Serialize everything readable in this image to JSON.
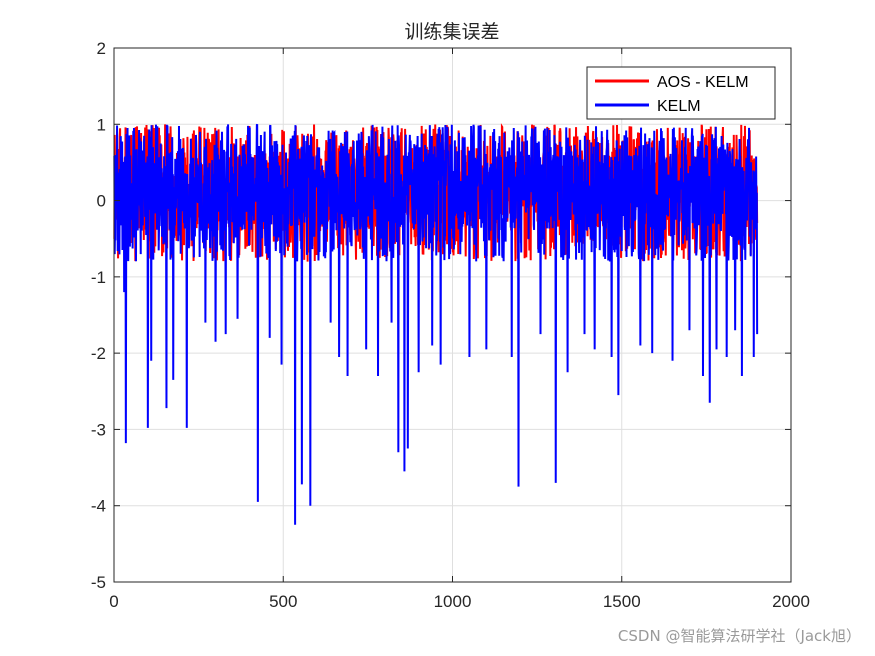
{
  "chart_data": {
    "type": "line",
    "title": "训练集误差",
    "xlabel": "",
    "ylabel": "",
    "xlim": [
      0,
      2000
    ],
    "ylim": [
      -5,
      2
    ],
    "x_ticks": [
      0,
      500,
      1000,
      1500,
      2000
    ],
    "y_ticks": [
      -5,
      -4,
      -3,
      -2,
      -1,
      0,
      1,
      2
    ],
    "grid": true,
    "legend_position": "top-right",
    "n_points": 1900,
    "series": [
      {
        "name": "AOS - KELM",
        "color": "#ff0000",
        "note_values": "dense noise between about -0.8 and 1.0 for x in 1..1900, almost entirely hidden under KELM",
        "peaks": [
          [
            270,
            0.38
          ]
        ]
      },
      {
        "name": "KELM",
        "color": "#0000ff",
        "dense_range": [
          -0.8,
          1.0
        ],
        "spikes": [
          [
            30,
            -1.2
          ],
          [
            35,
            -3.18
          ],
          [
            100,
            -2.98
          ],
          [
            110,
            -2.1
          ],
          [
            155,
            -2.72
          ],
          [
            175,
            -2.35
          ],
          [
            215,
            -2.98
          ],
          [
            270,
            -1.6
          ],
          [
            300,
            -1.85
          ],
          [
            330,
            -1.75
          ],
          [
            365,
            -1.55
          ],
          [
            425,
            -3.95
          ],
          [
            460,
            -1.8
          ],
          [
            495,
            -2.15
          ],
          [
            535,
            -4.25
          ],
          [
            555,
            -3.72
          ],
          [
            580,
            -4.0
          ],
          [
            640,
            -1.6
          ],
          [
            665,
            -2.05
          ],
          [
            690,
            -2.3
          ],
          [
            745,
            -1.95
          ],
          [
            780,
            -2.3
          ],
          [
            820,
            -1.6
          ],
          [
            840,
            -3.3
          ],
          [
            858,
            -3.55
          ],
          [
            868,
            -3.25
          ],
          [
            900,
            -2.25
          ],
          [
            940,
            -1.9
          ],
          [
            965,
            -2.15
          ],
          [
            1050,
            -2.05
          ],
          [
            1100,
            -1.95
          ],
          [
            1175,
            -2.05
          ],
          [
            1195,
            -3.75
          ],
          [
            1260,
            -1.75
          ],
          [
            1305,
            -3.7
          ],
          [
            1340,
            -2.25
          ],
          [
            1390,
            -1.75
          ],
          [
            1420,
            -1.95
          ],
          [
            1470,
            -2.05
          ],
          [
            1490,
            -2.55
          ],
          [
            1555,
            -1.9
          ],
          [
            1590,
            -2.0
          ],
          [
            1650,
            -2.1
          ],
          [
            1700,
            -1.7
          ],
          [
            1740,
            -2.3
          ],
          [
            1760,
            -2.65
          ],
          [
            1780,
            -1.95
          ],
          [
            1810,
            -2.05
          ],
          [
            1835,
            -1.7
          ],
          [
            1855,
            -2.3
          ],
          [
            1890,
            -2.05
          ],
          [
            1900,
            -1.75
          ]
        ]
      }
    ]
  },
  "watermark": "CSDN @智能算法研学社（Jack旭）"
}
